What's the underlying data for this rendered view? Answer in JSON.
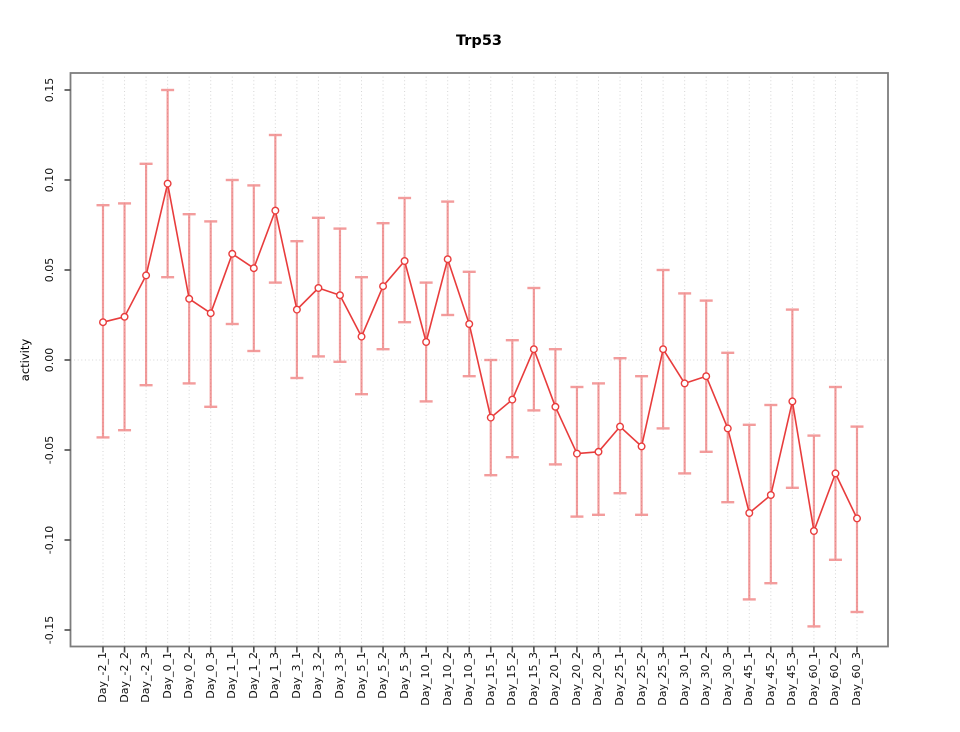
{
  "page": {
    "background": "#FFFFFF"
  },
  "chart_data": {
    "type": "line",
    "title": "Trp53",
    "xlabel": "",
    "ylabel": "activity",
    "categories": [
      "Day_-2_1",
      "Day_-2_2",
      "Day_-2_3",
      "Day_0_1",
      "Day_0_2",
      "Day_0_3",
      "Day_1_1",
      "Day_1_2",
      "Day_1_3",
      "Day_3_1",
      "Day_3_2",
      "Day_3_3",
      "Day_5_1",
      "Day_5_2",
      "Day_5_3",
      "Day_10_1",
      "Day_10_2",
      "Day_10_3",
      "Day_15_1",
      "Day_15_2",
      "Day_15_3",
      "Day_20_1",
      "Day_20_2",
      "Day_20_3",
      "Day_25_1",
      "Day_25_2",
      "Day_25_3",
      "Day_30_1",
      "Day_30_2",
      "Day_30_3",
      "Day_45_1",
      "Day_45_2",
      "Day_45_3",
      "Day_60_1",
      "Day_60_2",
      "Day_60_3"
    ],
    "series": [
      {
        "name": "Trp53 activity",
        "values": [
          0.021,
          0.024,
          0.047,
          0.098,
          0.034,
          0.026,
          0.059,
          0.051,
          0.083,
          0.028,
          0.04,
          0.036,
          0.013,
          0.041,
          0.055,
          0.01,
          0.056,
          0.02,
          -0.032,
          -0.022,
          0.006,
          -0.026,
          -0.052,
          -0.051,
          -0.037,
          -0.048,
          0.006,
          -0.013,
          -0.009,
          -0.038,
          -0.085,
          -0.075,
          -0.023,
          -0.095,
          -0.063,
          -0.088
        ],
        "err_high": [
          0.086,
          0.087,
          0.109,
          0.15,
          0.081,
          0.077,
          0.1,
          0.097,
          0.125,
          0.066,
          0.079,
          0.073,
          0.046,
          0.076,
          0.09,
          0.043,
          0.088,
          0.049,
          0.0,
          0.011,
          0.04,
          0.006,
          -0.015,
          -0.013,
          0.001,
          -0.009,
          0.05,
          0.037,
          0.033,
          0.004,
          -0.036,
          -0.025,
          0.028,
          -0.042,
          -0.015,
          -0.037
        ],
        "err_low": [
          -0.043,
          -0.039,
          -0.014,
          0.046,
          -0.013,
          -0.026,
          0.02,
          0.005,
          0.043,
          -0.01,
          0.002,
          -0.001,
          -0.019,
          0.006,
          0.021,
          -0.023,
          0.025,
          -0.009,
          -0.064,
          -0.054,
          -0.028,
          -0.058,
          -0.087,
          -0.086,
          -0.074,
          -0.086,
          -0.038,
          -0.063,
          -0.051,
          -0.079,
          -0.133,
          -0.124,
          -0.071,
          -0.148,
          -0.111,
          -0.14
        ]
      }
    ],
    "y_ticks": {
      "labels": [
        "0.15",
        "0.10",
        "0.05",
        "0.00",
        "-0.05",
        "-0.10",
        "-0.15"
      ],
      "values": [
        0.15,
        0.1,
        0.05,
        0.0,
        -0.05,
        -0.1,
        -0.15
      ]
    },
    "ylim": [
      -0.16,
      0.16
    ],
    "grid": {
      "vertical_dotted_per_category": true,
      "horizontal_dotted_zero_line": true
    },
    "legend": "none",
    "marker": "open-circle",
    "colors": {
      "series": "#E83C3C",
      "error_bar": "#E83C3C",
      "error_bar_opacity": 0.5,
      "grid": "#D6D6D6",
      "axis_box": "#7D7D7D",
      "tick": "#4A4A4A",
      "text": "#111111"
    }
  }
}
